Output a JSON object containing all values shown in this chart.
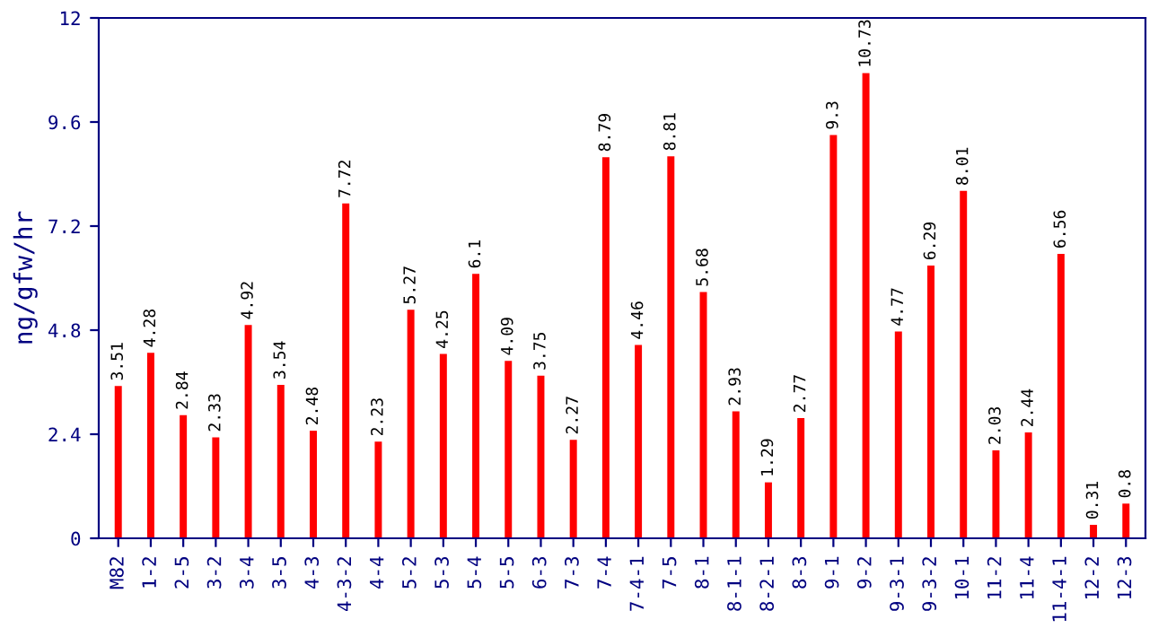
{
  "chart_data": {
    "type": "bar",
    "ylabel": "ng/gfw/hr",
    "categories": [
      "M82",
      "1-2",
      "2-5",
      "3-2",
      "3-4",
      "3-5",
      "4-3",
      "4-3-2",
      "4-4",
      "5-2",
      "5-3",
      "5-4",
      "5-5",
      "6-3",
      "7-3",
      "7-4",
      "7-4-1",
      "7-5",
      "8-1",
      "8-1-1",
      "8-2-1",
      "8-3",
      "9-1",
      "9-2",
      "9-3-1",
      "9-3-2",
      "10-1",
      "11-2",
      "11-4",
      "11-4-1",
      "12-2",
      "12-3"
    ],
    "values": [
      3.51,
      4.28,
      2.84,
      2.33,
      4.92,
      3.54,
      2.48,
      7.72,
      2.23,
      5.27,
      4.25,
      6.1,
      4.09,
      3.75,
      2.27,
      8.79,
      4.46,
      8.81,
      5.68,
      2.93,
      1.29,
      2.77,
      9.3,
      10.73,
      4.77,
      6.29,
      8.01,
      2.03,
      2.44,
      6.56,
      0.31,
      0.8
    ],
    "color": "#ff0000",
    "ylim": [
      0,
      12
    ],
    "yticks": [
      0,
      2.4,
      4.8,
      7.2,
      9.6,
      12
    ],
    "data_labels": true,
    "grid": false,
    "legend": false
  }
}
